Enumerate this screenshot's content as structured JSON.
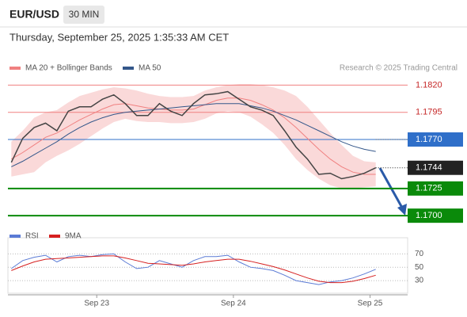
{
  "header": {
    "symbol": "EUR/USD",
    "timeframe": "30 MIN",
    "datetime": "Thursday, September 25, 2025 1:35:33 AM CET",
    "credit": "Research © 2025 Trading Central"
  },
  "chart_data": [
    {
      "type": "line",
      "x": [
        9,
        11,
        13,
        15,
        17,
        19,
        21,
        23,
        25,
        27,
        29,
        31,
        33,
        35,
        37,
        39,
        41,
        43,
        45,
        47,
        49,
        51,
        53,
        55,
        57,
        59,
        61,
        63,
        65,
        67,
        69,
        71,
        73
      ],
      "xlim": [
        8.4,
        78.6
      ],
      "xticks": [
        {
          "value": 24,
          "label": "Sep 23"
        },
        {
          "value": 48,
          "label": "Sep 24"
        },
        {
          "value": 72,
          "label": "Sep 25"
        }
      ],
      "ylim": [
        1.1687,
        1.1829
      ],
      "price": {
        "color": "#444444",
        "values": [
          1.1749,
          1.1771,
          1.1781,
          1.1785,
          1.1778,
          1.1796,
          1.18,
          1.18,
          1.1807,
          1.1811,
          1.1803,
          1.1792,
          1.1792,
          1.1803,
          1.1796,
          1.1792,
          1.1803,
          1.1811,
          1.1812,
          1.1814,
          1.1807,
          1.18,
          1.1797,
          1.1792,
          1.1778,
          1.1763,
          1.1752,
          1.1738,
          1.1739,
          1.1734,
          1.1736,
          1.1739,
          1.1744
        ]
      },
      "series": [
        {
          "name": "MA 20 + Bollinger Bands",
          "color": "#f08080",
          "values": [
            1.1752,
            1.1758,
            1.1765,
            1.1772,
            1.1776,
            1.1782,
            1.1788,
            1.1793,
            1.1798,
            1.1802,
            1.1803,
            1.1801,
            1.1799,
            1.1798,
            1.1797,
            1.1797,
            1.1798,
            1.1802,
            1.1806,
            1.1808,
            1.1808,
            1.1806,
            1.1802,
            1.1797,
            1.179,
            1.1781,
            1.1771,
            1.1761,
            1.1752,
            1.1745,
            1.174,
            1.1738,
            1.1738
          ],
          "upper": [
            1.1768,
            1.1778,
            1.179,
            1.1795,
            1.1797,
            1.1804,
            1.181,
            1.1813,
            1.1816,
            1.1818,
            1.1817,
            1.1815,
            1.1812,
            1.181,
            1.1809,
            1.1809,
            1.181,
            1.1815,
            1.1818,
            1.182,
            1.1821,
            1.1821,
            1.182,
            1.1818,
            1.1815,
            1.181,
            1.18,
            1.1788,
            1.1776,
            1.1765,
            1.1755,
            1.175,
            1.1749
          ],
          "lower": [
            1.1736,
            1.1738,
            1.174,
            1.1749,
            1.1755,
            1.176,
            1.1766,
            1.1773,
            1.178,
            1.1786,
            1.1789,
            1.1787,
            1.1786,
            1.1786,
            1.1785,
            1.1785,
            1.1786,
            1.1789,
            1.1794,
            1.1796,
            1.1795,
            1.1791,
            1.1784,
            1.1776,
            1.1765,
            1.1752,
            1.1742,
            1.1734,
            1.1728,
            1.1725,
            1.1725,
            1.1726,
            1.1727
          ]
        },
        {
          "name": "MA 50",
          "color": "#34578a",
          "values": [
            1.1745,
            1.175,
            1.1756,
            1.1762,
            1.1768,
            1.1775,
            1.1781,
            1.1786,
            1.179,
            1.1793,
            1.1795,
            1.1796,
            1.1797,
            1.1798,
            1.1799,
            1.18,
            1.1801,
            1.1802,
            1.1803,
            1.1803,
            1.1803,
            1.1801,
            1.1799,
            1.1796,
            1.1792,
            1.1788,
            1.1783,
            1.1778,
            1.1773,
            1.1768,
            1.1764,
            1.1761,
            1.1759
          ]
        }
      ],
      "levels": [
        {
          "value": 1.182,
          "label": "1.1820",
          "color": "#f08080",
          "style": "text"
        },
        {
          "value": 1.1795,
          "label": "1.1795",
          "color": "#f08080",
          "style": "text"
        },
        {
          "value": 1.177,
          "label": "1.1770",
          "color": "#2f6fc9",
          "style": "box"
        },
        {
          "value": 1.1744,
          "label": "1.1744",
          "color": "#222222",
          "style": "dotted"
        },
        {
          "value": 1.1725,
          "label": "1.1725",
          "color": "#0a8a0a",
          "style": "box"
        },
        {
          "value": 1.17,
          "label": "1.1700",
          "color": "#0a8a0a",
          "style": "box"
        }
      ]
    },
    {
      "type": "line",
      "ylim": [
        17,
        80
      ],
      "yticks": [
        70,
        50,
        30
      ],
      "series": [
        {
          "name": "RSI",
          "color": "#5b7bd5",
          "values": [
            48,
            60,
            65,
            68,
            58,
            66,
            68,
            66,
            69,
            70,
            58,
            48,
            50,
            60,
            55,
            50,
            60,
            66,
            66,
            68,
            58,
            50,
            48,
            45,
            38,
            30,
            27,
            24,
            28,
            30,
            34,
            40,
            47
          ]
        },
        {
          "name": "9MA",
          "color": "#d62020",
          "values": [
            45,
            52,
            58,
            62,
            63,
            64,
            65,
            66,
            67,
            67,
            64,
            60,
            56,
            55,
            54,
            53,
            55,
            58,
            60,
            62,
            62,
            59,
            55,
            51,
            46,
            40,
            34,
            29,
            27,
            27,
            29,
            33,
            38
          ]
        }
      ]
    }
  ]
}
